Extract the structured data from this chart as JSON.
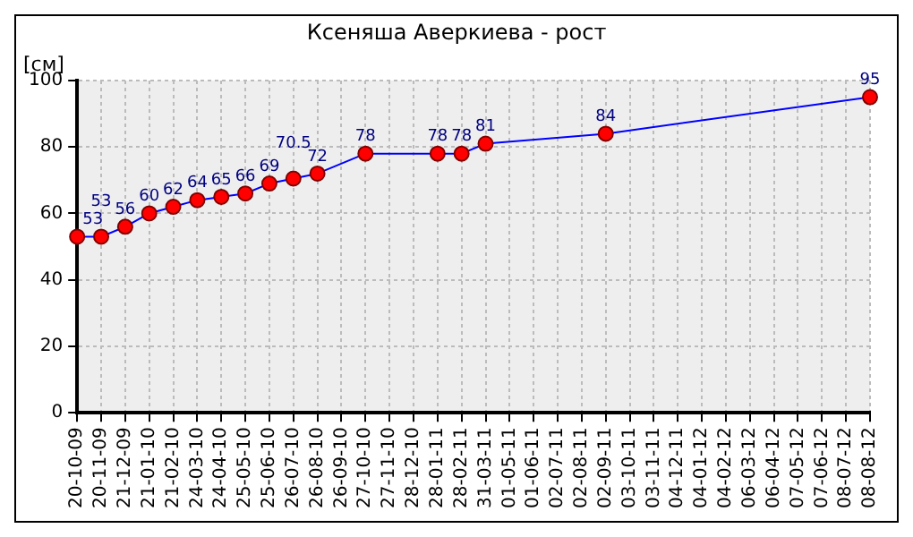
{
  "chart_data": {
    "type": "line",
    "title": "Ксеняша Аверкиева - рост",
    "ylabel": "[см]",
    "categories": [
      "20-10-09",
      "20-11-09",
      "21-12-09",
      "21-01-10",
      "21-02-10",
      "24-03-10",
      "24-04-10",
      "25-05-10",
      "25-06-10",
      "26-07-10",
      "26-08-10",
      "26-09-10",
      "27-10-10",
      "27-11-10",
      "28-12-10",
      "28-01-11",
      "28-02-11",
      "31-03-11",
      "01-05-11",
      "01-06-11",
      "02-07-11",
      "02-08-11",
      "02-09-11",
      "03-10-11",
      "03-11-11",
      "04-12-11",
      "04-01-12",
      "04-02-12",
      "06-03-12",
      "06-04-12",
      "07-05-12",
      "07-06-12",
      "08-07-12",
      "08-08-12"
    ],
    "series": [
      {
        "color": "#0000ff",
        "colors": [
          "#ff0000",
          "#ff0000",
          "#ff0000",
          "#ff0000",
          "#ff0000",
          "#ff0000",
          "#ff0000",
          "#ff0000",
          "#ff0000",
          "#ff0000",
          "#ff0000",
          "#ff0000",
          "#ff0000",
          "#ff0000",
          "#ff0000",
          "#ff0000",
          "#ff0000",
          "#ff0000",
          "#ff0000",
          "#ff0000",
          "#ff0000",
          "#ff0000",
          "#ff0000",
          "#ff0000",
          "#ff0000",
          "#ff0000",
          "#ff0000",
          "#ff0000",
          "#ff0000",
          "#ff0000",
          "#ff0000",
          "#ff0000",
          "#ff0000",
          "#ff0000"
        ],
        "values": [
          53,
          53,
          56,
          60,
          62,
          64,
          65,
          66,
          69,
          70.5,
          72,
          null,
          78,
          null,
          null,
          78,
          78,
          81,
          null,
          null,
          null,
          null,
          84,
          null,
          null,
          null,
          null,
          null,
          null,
          null,
          null,
          null,
          null,
          95
        ]
      }
    ],
    "ylim": [
      0,
      100
    ],
    "yticks": [
      0,
      20,
      40,
      60,
      80,
      100
    ],
    "grid": true,
    "marker": "circle",
    "line_style": "solid",
    "data_labels": true,
    "legend": false
  }
}
